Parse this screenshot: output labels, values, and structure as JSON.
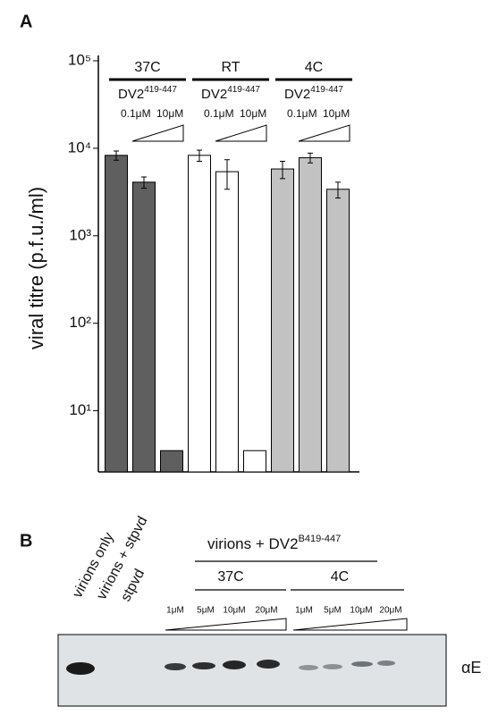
{
  "chart_data": {
    "type": "bar",
    "panel": "A",
    "y_label": "viral titre (p.f.u./ml)",
    "log_scale": true,
    "ylim": [
      2,
      100000
    ],
    "yticks": [
      {
        "value": 10,
        "label": "10¹"
      },
      {
        "value": 100,
        "label": "10²"
      },
      {
        "value": 1000,
        "label": "10³"
      },
      {
        "value": 10000,
        "label": "10⁴"
      },
      {
        "value": 100000,
        "label": "10⁵"
      }
    ],
    "series": [
      {
        "name": "37C",
        "color": "#5f5f5f",
        "compound": "DV2",
        "superscript": "419-447",
        "low": "0.1μM",
        "high": "10μM",
        "values": [
          8300,
          4100,
          3.5
        ],
        "errors": [
          1000,
          600,
          null
        ]
      },
      {
        "name": "RT",
        "color": "#ffffff",
        "compound": "DV2",
        "superscript": "419-447",
        "low": "0.1μM",
        "high": "10μM",
        "values": [
          8300,
          5400,
          3.5
        ],
        "errors": [
          1200,
          2000,
          null
        ]
      },
      {
        "name": "4C",
        "color": "#c2c2c2",
        "compound": "DV2",
        "superscript": "419-447",
        "low": "0.1μM",
        "high": "10μM",
        "values": [
          5800,
          7800,
          3400
        ],
        "errors": [
          1300,
          1000,
          700
        ]
      }
    ]
  },
  "panel_b": {
    "label": "B",
    "lanes": [
      "virions only",
      "virions + stpvd",
      "stpvd"
    ],
    "heading": "virions + DV2",
    "heading_superscript": "B419-447",
    "groups": [
      {
        "name": "37C",
        "concentrations": [
          "1μM",
          "5μM",
          "10μM",
          "20μM"
        ]
      },
      {
        "name": "4C",
        "concentrations": [
          "1μM",
          "5μM",
          "10μM",
          "20μM"
        ]
      }
    ],
    "band_label": "αE"
  }
}
